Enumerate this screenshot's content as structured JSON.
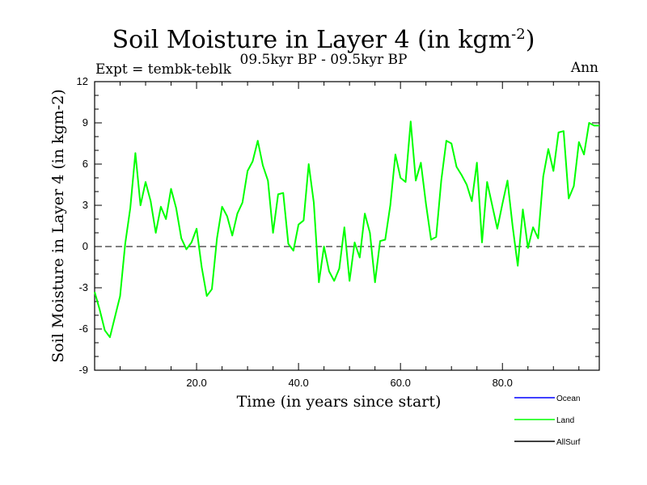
{
  "header": {
    "title_main": "Soil Moisture in Layer 4 (in kgm",
    "title_sup": "-2",
    "title_close": ")",
    "subtitle": "09.5kyr BP - 09.5kyr BP",
    "expt": "Expt = tembk-teblk",
    "season": "Ann"
  },
  "chart_data": {
    "type": "line",
    "title": "Soil Moisture in Layer 4 (in kgm-2)",
    "xlabel": "Time (in years since start)",
    "ylabel": "Soil Moisture in Layer 4 (in kgm-2)",
    "xlim": [
      0,
      99
    ],
    "ylim": [
      -9,
      12
    ],
    "xticks": [
      20,
      40,
      60,
      80
    ],
    "xtick_labels": [
      "20.0",
      "40.0",
      "60.0",
      "80.0"
    ],
    "yticks": [
      -9,
      -6,
      -3,
      0,
      3,
      6,
      9,
      12
    ],
    "ytick_labels": [
      "-9",
      "-6",
      "-3",
      "0",
      "3",
      "6",
      "9",
      "12"
    ],
    "reference_line": 0,
    "series": [
      {
        "name": "Land",
        "color": "#00ff00",
        "x": [
          0,
          1,
          2,
          3,
          4,
          5,
          6,
          7,
          8,
          9,
          10,
          11,
          12,
          13,
          14,
          15,
          16,
          17,
          18,
          19,
          20,
          21,
          22,
          23,
          24,
          25,
          26,
          27,
          28,
          29,
          30,
          31,
          32,
          33,
          34,
          35,
          36,
          37,
          38,
          39,
          40,
          41,
          42,
          43,
          44,
          45,
          46,
          47,
          48,
          49,
          50,
          51,
          52,
          53,
          54,
          55,
          56,
          57,
          58,
          59,
          60,
          61,
          62,
          63,
          64,
          65,
          66,
          67,
          68,
          69,
          70,
          71,
          72,
          73,
          74,
          75,
          76,
          77,
          78,
          79,
          80,
          81,
          82,
          83,
          84,
          85,
          86,
          87,
          88,
          89,
          90,
          91,
          92,
          93,
          94,
          95,
          96,
          97,
          98,
          99
        ],
        "values": [
          -3.3,
          -4.6,
          -6.1,
          -6.6,
          -5.1,
          -3.6,
          0.2,
          2.8,
          6.8,
          3.0,
          4.7,
          3.3,
          1.0,
          2.9,
          2.0,
          4.2,
          2.8,
          0.6,
          -0.2,
          0.3,
          1.3,
          -1.5,
          -3.6,
          -3.1,
          0.6,
          2.9,
          2.2,
          0.8,
          2.4,
          3.2,
          5.5,
          6.2,
          7.7,
          5.9,
          4.8,
          1.0,
          3.8,
          3.9,
          0.2,
          -0.3,
          1.6,
          1.9,
          6.0,
          3.2,
          -2.6,
          0.0,
          -1.8,
          -2.5,
          -1.6,
          1.4,
          -2.5,
          0.3,
          -0.8,
          2.4,
          1.0,
          -2.6,
          0.4,
          0.5,
          3.0,
          6.7,
          5.0,
          4.7,
          9.1,
          4.8,
          6.1,
          3.1,
          0.5,
          0.7,
          4.8,
          7.7,
          7.5,
          5.8,
          5.2,
          4.5,
          3.3,
          6.1,
          0.3,
          4.7,
          3.0,
          1.3,
          3.1,
          4.8,
          1.5,
          -1.4,
          2.7,
          -0.1,
          1.4,
          0.6,
          5.1,
          7.1,
          5.5,
          8.3,
          8.4,
          3.5,
          4.4,
          7.6,
          6.7,
          9.0,
          8.8,
          8.8
        ]
      }
    ],
    "legend": [
      {
        "label": "Ocean",
        "color": "#0000ff"
      },
      {
        "label": "Land",
        "color": "#00ff00"
      },
      {
        "label": "AllSurf",
        "color": "#000000"
      }
    ]
  }
}
